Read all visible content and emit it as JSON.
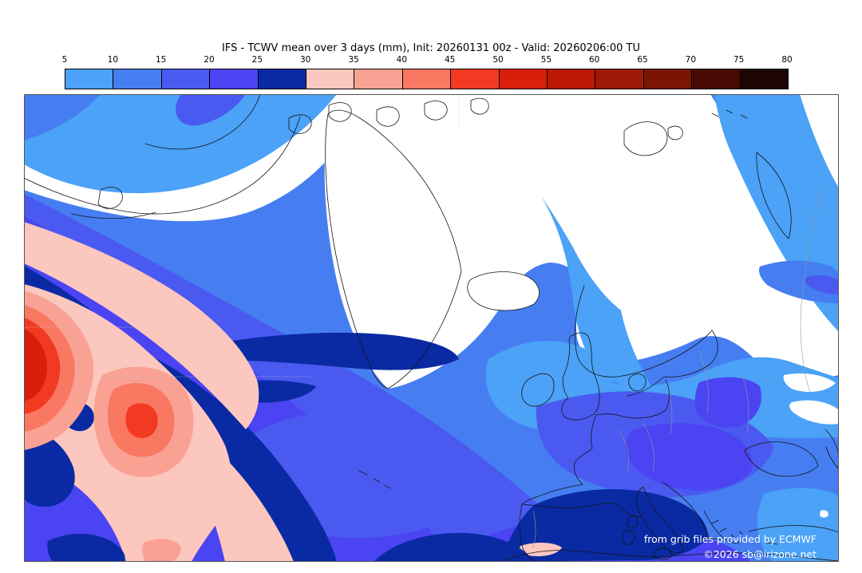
{
  "header": {
    "title": "IFS - TCWV mean over 3 days (mm), Init: 20260131 00z - Valid: 20260206:00 TU"
  },
  "colorbar": {
    "ticks": [
      "5",
      "10",
      "15",
      "20",
      "25",
      "30",
      "35",
      "40",
      "45",
      "50",
      "55",
      "60",
      "65",
      "70",
      "75",
      "80"
    ],
    "colors": [
      "#4ba2f7",
      "#467ef2",
      "#4a5af0",
      "#4b44f2",
      "#0a2aa4",
      "#fcc7be",
      "#f9a294",
      "#f97862",
      "#f23a22",
      "#da1e0c",
      "#bb1705",
      "#9e1a07",
      "#7c1406",
      "#470b04",
      "#1d0503"
    ],
    "below_min_color": "#ffffff",
    "units": "mm"
  },
  "map": {
    "level_colors": {
      "w": "#ffffff",
      "c5": "#4ba2f7",
      "c10": "#467ef2",
      "c15": "#4a5af0",
      "c20": "#4b44f2",
      "c25": "#0a2aa4",
      "c30": "#fcc7be",
      "c35": "#f9a294",
      "c40": "#f97862",
      "c45": "#f23a22",
      "c50": "#da1e0c"
    },
    "coast_color": "#151515",
    "border_color": "#555555",
    "country_border_color": "#999999",
    "graticule_color": "#c8c8c8"
  },
  "footer": {
    "credit": "from grib files provided by ECMWF",
    "copyright": "©2026 sb@irizone.net"
  }
}
